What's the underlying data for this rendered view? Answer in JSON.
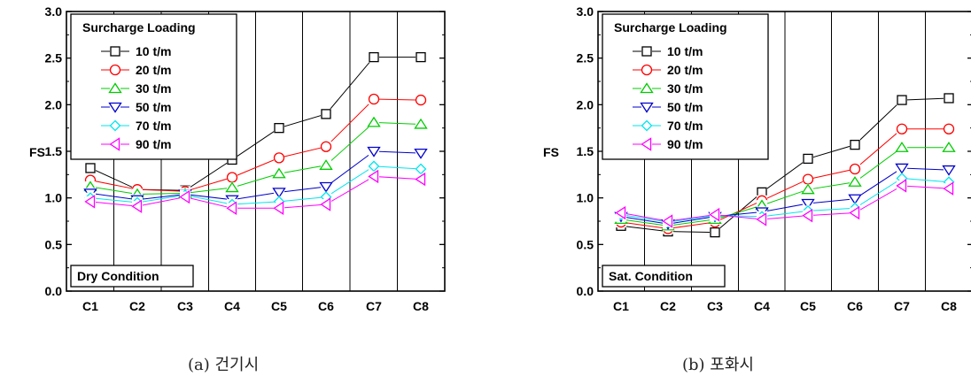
{
  "figure": {
    "caption_a": "(a) 건기시",
    "caption_b": "(b) 포화시"
  },
  "chart_data": [
    {
      "type": "line",
      "ylabel": "FS",
      "ylim": [
        0,
        3
      ],
      "yticks": [
        "0.0",
        "0.5",
        "1.0",
        "1.5",
        "2.0",
        "2.5",
        "3.0"
      ],
      "categories": [
        "C1",
        "C2",
        "C3",
        "C4",
        "C5",
        "C6",
        "C7",
        "C8"
      ],
      "vertical_grid": true,
      "legend_title": "Surcharge Loading",
      "legend_position": "top-left",
      "condition_label": "Dry Condition",
      "series": [
        {
          "name": "10 t/m",
          "marker": "square",
          "color": "#000000",
          "values": [
            1.32,
            1.09,
            1.08,
            1.41,
            1.75,
            1.9,
            2.51,
            2.51
          ]
        },
        {
          "name": "20 t/m",
          "marker": "circle",
          "color": "#ff0000",
          "values": [
            1.19,
            1.09,
            1.07,
            1.22,
            1.43,
            1.55,
            2.06,
            2.05
          ]
        },
        {
          "name": "30 t/m",
          "marker": "triangle-up",
          "color": "#00cc00",
          "values": [
            1.12,
            1.04,
            1.05,
            1.11,
            1.26,
            1.35,
            1.81,
            1.79
          ]
        },
        {
          "name": "50 t/m",
          "marker": "triangle-down",
          "color": "#0000cc",
          "values": [
            1.05,
            0.98,
            1.04,
            0.98,
            1.06,
            1.12,
            1.5,
            1.48
          ]
        },
        {
          "name": "70 t/m",
          "marker": "diamond",
          "color": "#00e5ee",
          "values": [
            1.0,
            0.95,
            1.03,
            0.93,
            0.96,
            1.01,
            1.34,
            1.31
          ]
        },
        {
          "name": "90 t/m",
          "marker": "triangle-left",
          "color": "#ff00ff",
          "values": [
            0.96,
            0.91,
            1.01,
            0.89,
            0.89,
            0.93,
            1.23,
            1.2
          ]
        }
      ]
    },
    {
      "type": "line",
      "ylabel": "FS",
      "ylim": [
        0,
        3
      ],
      "yticks": [
        "0.0",
        "0.5",
        "1.0",
        "1.5",
        "2.0",
        "2.5",
        "3.0"
      ],
      "categories": [
        "C1",
        "C2",
        "C3",
        "C4",
        "C5",
        "C6",
        "C7",
        "C8"
      ],
      "vertical_grid": true,
      "legend_title": "Surcharge Loading",
      "legend_position": "top-left",
      "condition_label": "Sat. Condition",
      "series": [
        {
          "name": "10 t/m",
          "marker": "square",
          "color": "#000000",
          "values": [
            0.7,
            0.64,
            0.63,
            1.06,
            1.42,
            1.57,
            2.05,
            2.07
          ]
        },
        {
          "name": "20 t/m",
          "marker": "circle",
          "color": "#ff0000",
          "values": [
            0.74,
            0.67,
            0.74,
            0.97,
            1.2,
            1.31,
            1.74,
            1.74
          ]
        },
        {
          "name": "30 t/m",
          "marker": "triangle-up",
          "color": "#00cc00",
          "values": [
            0.77,
            0.7,
            0.77,
            0.92,
            1.09,
            1.17,
            1.54,
            1.54
          ]
        },
        {
          "name": "50 t/m",
          "marker": "triangle-down",
          "color": "#0000cc",
          "values": [
            0.8,
            0.72,
            0.8,
            0.85,
            0.94,
            0.99,
            1.32,
            1.3
          ]
        },
        {
          "name": "70 t/m",
          "marker": "diamond",
          "color": "#00e5ee",
          "values": [
            0.82,
            0.74,
            0.81,
            0.8,
            0.86,
            0.89,
            1.21,
            1.17
          ]
        },
        {
          "name": "90 t/m",
          "marker": "triangle-left",
          "color": "#ff00ff",
          "values": [
            0.84,
            0.75,
            0.82,
            0.77,
            0.81,
            0.84,
            1.13,
            1.1
          ]
        }
      ]
    }
  ]
}
